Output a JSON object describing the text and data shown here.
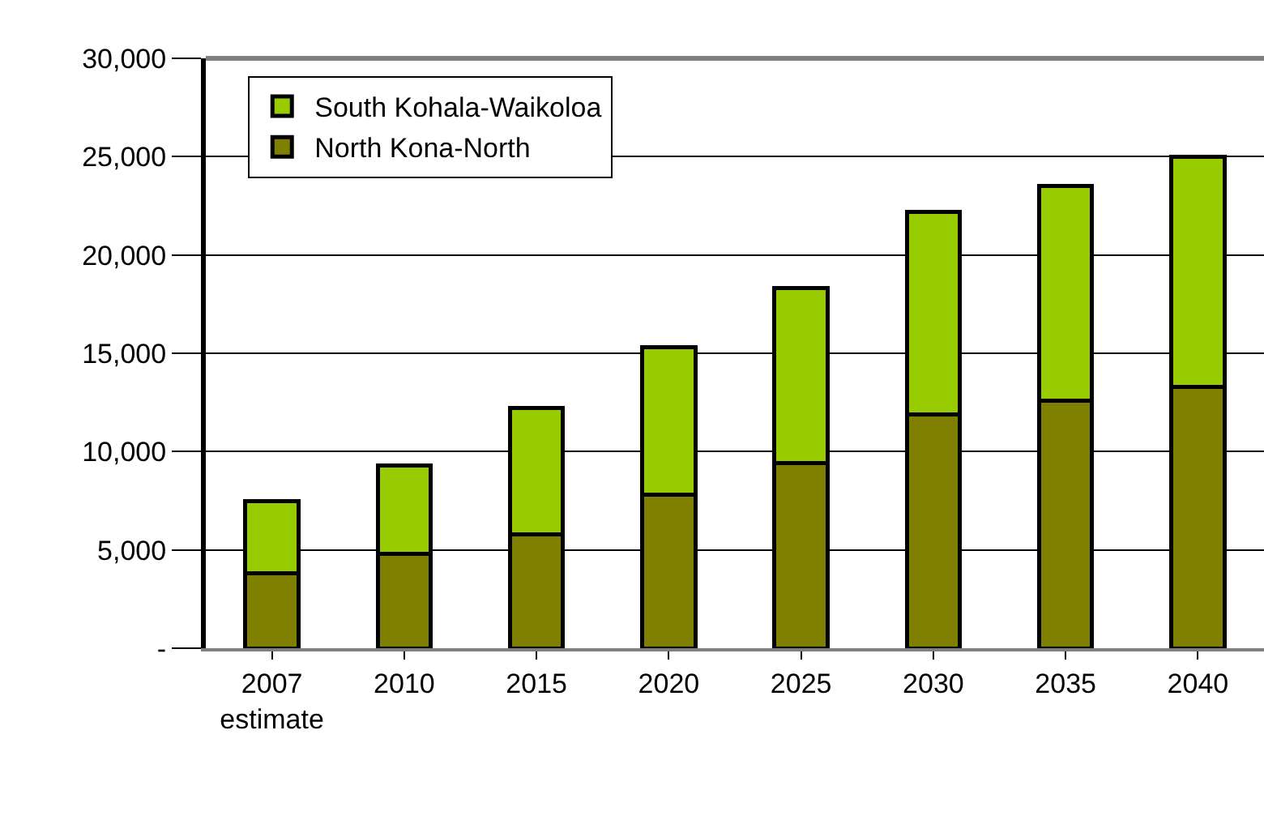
{
  "chart_data": {
    "type": "bar",
    "stacked": true,
    "categories": [
      "2007\nestimate",
      "2010",
      "2015",
      "2020",
      "2025",
      "2030",
      "2035",
      "2040"
    ],
    "series": [
      {
        "name": "North Kona-North",
        "color": "#808000",
        "values": [
          3800,
          4800,
          5800,
          7800,
          9400,
          11900,
          12600,
          13300
        ]
      },
      {
        "name": "South Kohala-Waikoloa",
        "color": "#99cc00",
        "values": [
          3700,
          4500,
          6400,
          7500,
          8900,
          10300,
          10900,
          11700
        ]
      }
    ],
    "ylim": [
      0,
      30000
    ],
    "yticks": [
      {
        "value": 0,
        "label": "-"
      },
      {
        "value": 5000,
        "label": "5,000"
      },
      {
        "value": 10000,
        "label": "10,000"
      },
      {
        "value": 15000,
        "label": "15,000"
      },
      {
        "value": 20000,
        "label": "20,000"
      },
      {
        "value": 25000,
        "label": "25,000"
      },
      {
        "value": 30000,
        "label": "30,000"
      }
    ],
    "grid": "y",
    "legend": "top left"
  }
}
